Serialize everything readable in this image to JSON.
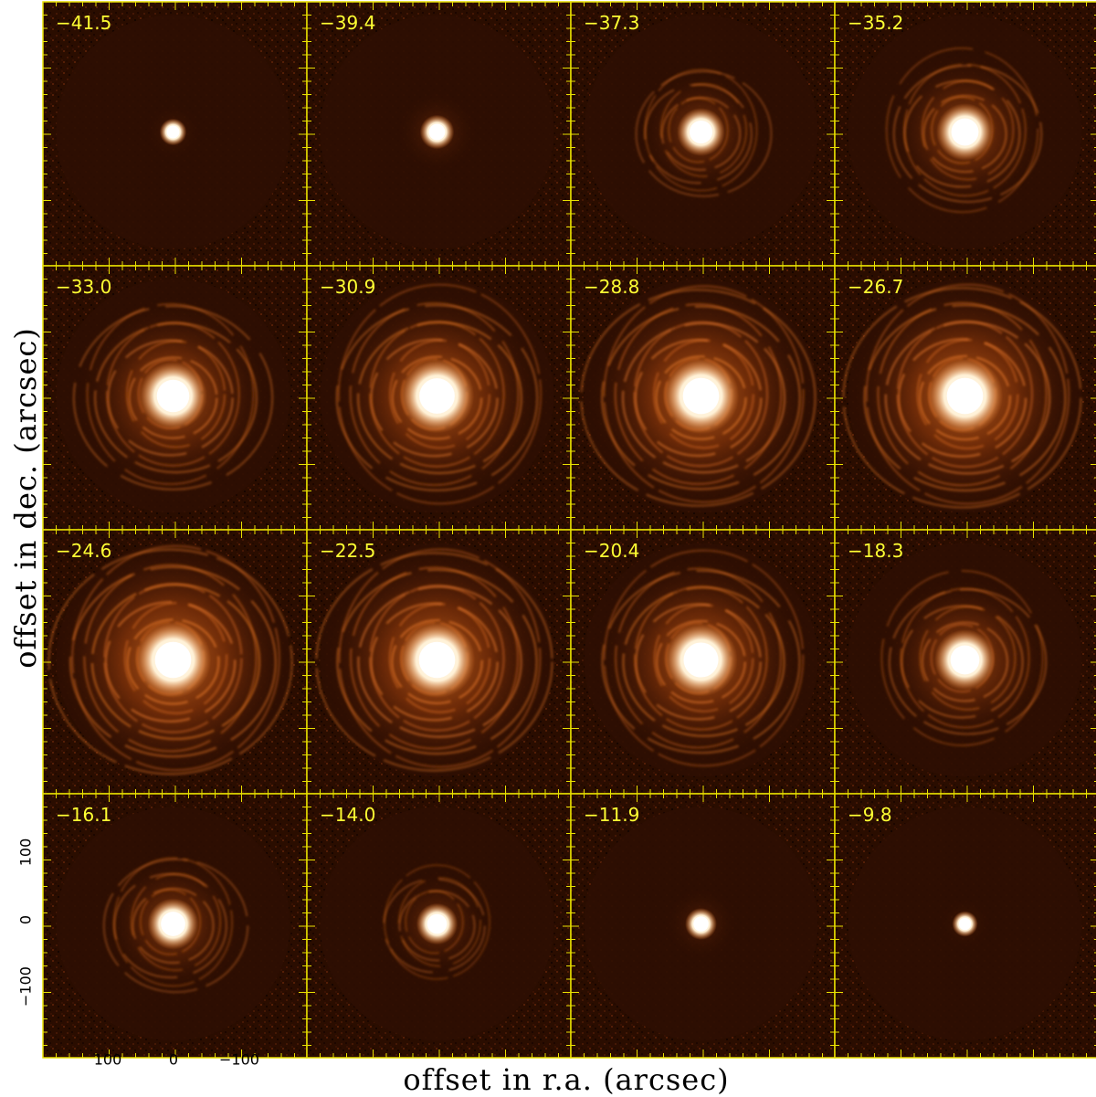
{
  "figure": {
    "xlabel": "offset in r.a. (arcsec)",
    "ylabel": "offset in dec. (arcsec)",
    "x_ticks": [
      "100",
      "0",
      "−100"
    ],
    "y_ticks": [
      "100",
      "0",
      "−100"
    ],
    "colors": {
      "background": "#2a0d00",
      "frame": "#e8e000",
      "label_text": "#ffff33",
      "colormap": [
        "#140400",
        "#3a1204",
        "#7a2a06",
        "#c04f10",
        "#ff8a30",
        "#ffd59a",
        "#ffffff"
      ]
    }
  },
  "panels": [
    {
      "label": "−41.5",
      "level": 0.1
    },
    {
      "label": "−39.4",
      "level": 0.22
    },
    {
      "label": "−37.3",
      "level": 0.45
    },
    {
      "label": "−35.2",
      "level": 0.6
    },
    {
      "label": "−33.0",
      "level": 0.78
    },
    {
      "label": "−30.9",
      "level": 0.88
    },
    {
      "label": "−28.8",
      "level": 0.95
    },
    {
      "label": "−26.7",
      "level": 0.97
    },
    {
      "label": "−24.6",
      "level": 1.0
    },
    {
      "label": "−22.5",
      "level": 0.96
    },
    {
      "label": "−20.4",
      "level": 0.86
    },
    {
      "label": "−18.3",
      "level": 0.66
    },
    {
      "label": "−16.1",
      "level": 0.5
    },
    {
      "label": "−14.0",
      "level": 0.34
    },
    {
      "label": "−11.9",
      "level": 0.18
    },
    {
      "label": "−9.8",
      "level": 0.08
    }
  ]
}
